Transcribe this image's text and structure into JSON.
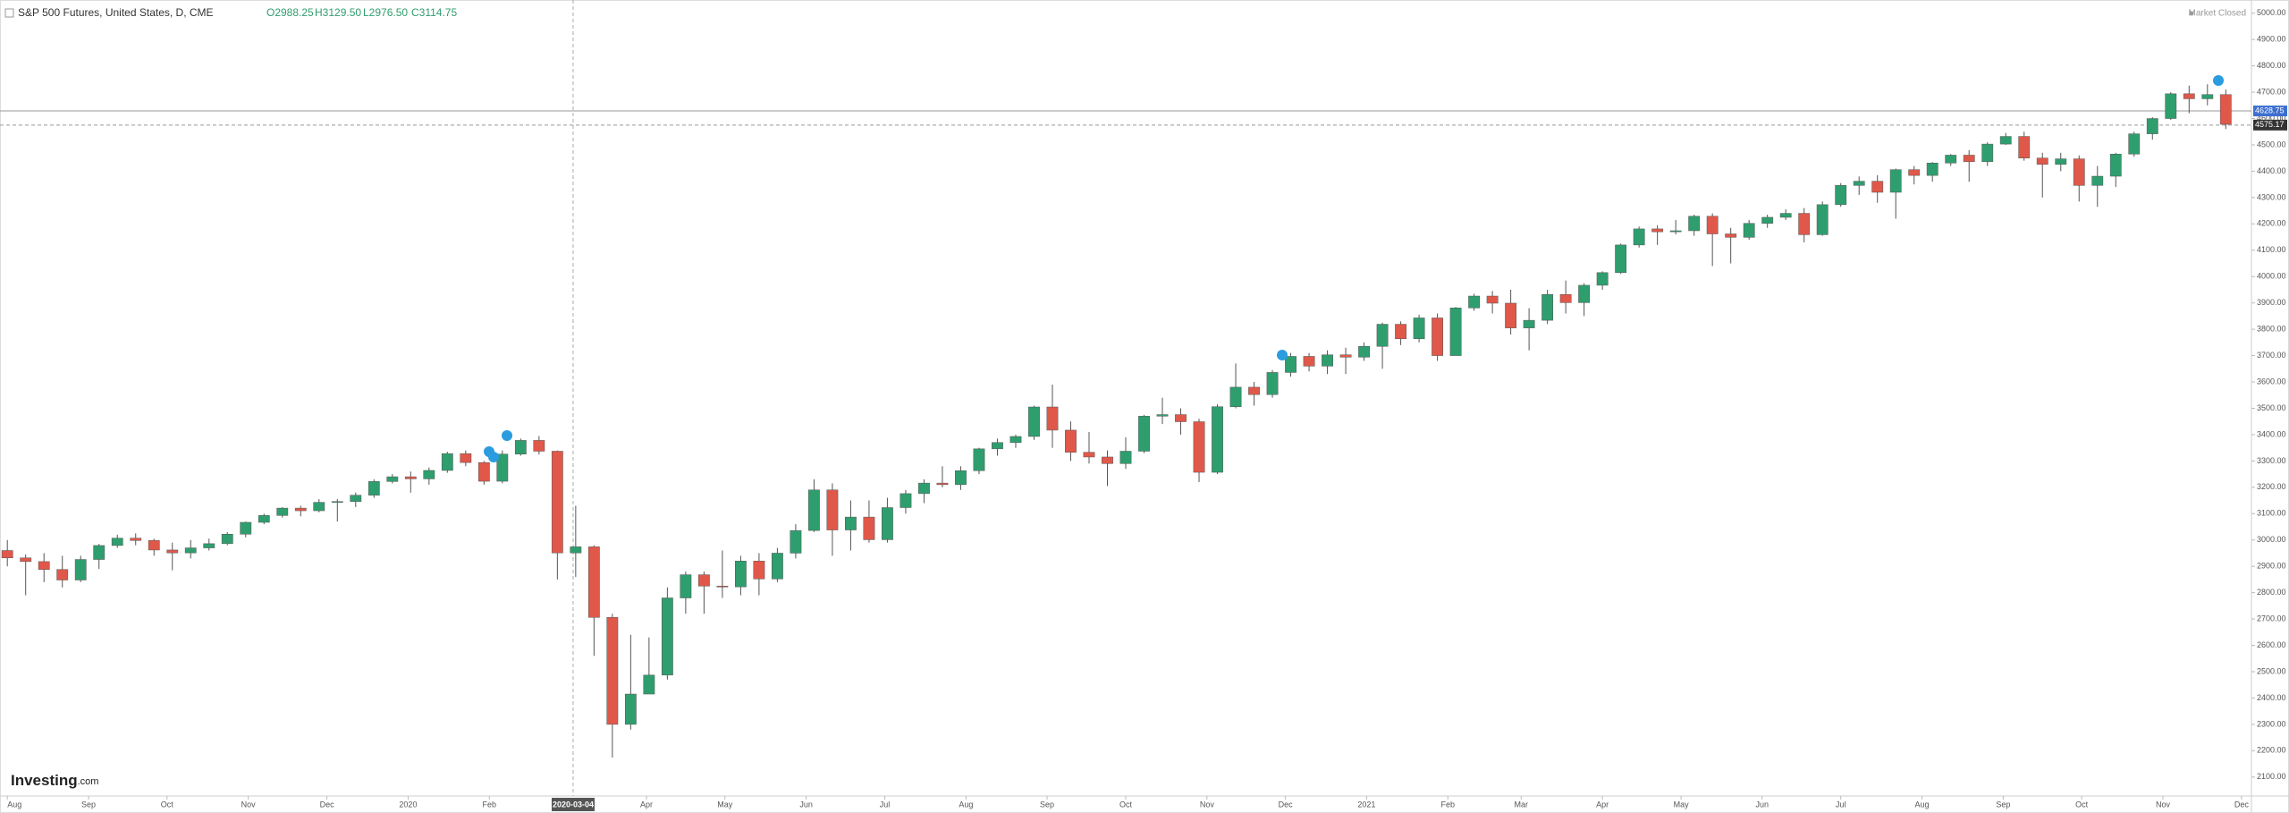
{
  "chart_data": {
    "type": "candlestick",
    "title": "S&P 500 Futures, United States, D, CME",
    "ohlc_labels": [
      "O2988.25",
      "H3129.50",
      "L2976.50",
      "C3114.75"
    ],
    "market_status": "Market Closed",
    "logo": "Investing",
    "logo_suffix": ".com",
    "up_color": "#2f9e6f",
    "down_color": "#e0584a",
    "x": [
      0,
      1,
      2,
      3,
      4,
      5,
      6,
      7,
      8,
      9,
      10,
      11,
      12,
      13,
      14,
      15,
      16,
      17,
      18,
      19,
      20,
      21,
      22,
      23,
      24,
      25,
      26,
      27,
      28,
      29,
      30,
      31,
      32,
      33,
      34,
      35,
      36,
      37,
      38,
      39,
      40,
      41,
      42,
      43,
      44,
      45,
      46,
      47,
      48,
      49,
      50,
      51,
      52,
      53,
      54,
      55,
      56,
      57,
      58,
      59,
      60,
      61,
      62,
      63,
      64,
      65,
      66,
      67,
      68,
      69,
      70,
      71,
      72,
      73,
      74,
      75,
      76,
      77,
      78,
      79,
      80,
      81,
      82,
      83,
      84,
      85,
      86,
      87,
      88,
      89,
      90,
      91,
      92,
      93,
      94,
      95,
      96,
      97,
      98,
      99,
      100,
      101,
      102,
      103,
      104,
      105,
      106,
      107,
      108,
      109,
      110,
      111,
      112,
      113,
      114,
      115,
      116,
      117,
      118,
      119,
      120,
      121
    ],
    "open": [
      2960,
      2932,
      2918,
      2888,
      2848,
      2926,
      2979,
      3007,
      2998,
      2962,
      2951,
      2970,
      2986,
      3022,
      3067,
      3093,
      3121,
      3111,
      3143,
      3146,
      3170,
      3222,
      3240,
      3232,
      3264,
      3328,
      3294,
      3223,
      3326,
      3378,
      3337,
      2951,
      2974,
      2706,
      2300,
      2415,
      2487,
      2780,
      2868,
      2825,
      2822,
      2920,
      2852,
      2950,
      3036,
      3190,
      3038,
      3087,
      3001,
      3123,
      3176,
      3216,
      3210,
      3263,
      3346,
      3370,
      3393,
      3505,
      3417,
      3333,
      3315,
      3290,
      3337,
      3470,
      3476,
      3449,
      3257,
      3506,
      3580,
      3552,
      3636,
      3697,
      3660,
      3703,
      3694,
      3735,
      3819,
      3764,
      3843,
      3700,
      3881,
      3926,
      3899,
      3805,
      3834,
      3932,
      3901,
      3967,
      4015,
      4120,
      4181,
      4170,
      4174,
      4229,
      4162,
      4149,
      4202,
      4225,
      4240,
      4159,
      4273,
      4346,
      4362,
      4320,
      4406,
      4384,
      4431,
      4461,
      4436,
      4503,
      4532,
      4450,
      4426,
      4447,
      4346,
      4381,
      4465,
      4542,
      4600,
      4694,
      4675,
      4691
    ],
    "high": [
      3000,
      2945,
      2950,
      2940,
      2940,
      2985,
      3020,
      3025,
      3005,
      2990,
      3000,
      3005,
      3030,
      3070,
      3100,
      3125,
      3130,
      3155,
      3155,
      3180,
      3230,
      3250,
      3260,
      3275,
      3335,
      3340,
      3300,
      3340,
      3385,
      3395,
      3340,
      3130,
      2980,
      2720,
      2640,
      2630,
      2820,
      2880,
      2880,
      2960,
      2940,
      2950,
      2970,
      3060,
      3230,
      3215,
      3150,
      3150,
      3160,
      3190,
      3230,
      3280,
      3280,
      3350,
      3385,
      3400,
      3510,
      3590,
      3450,
      3410,
      3340,
      3390,
      3475,
      3540,
      3500,
      3460,
      3515,
      3670,
      3600,
      3645,
      3710,
      3710,
      3720,
      3730,
      3750,
      3825,
      3830,
      3855,
      3860,
      3885,
      3935,
      3945,
      3950,
      3880,
      3950,
      3985,
      3975,
      4020,
      4125,
      4190,
      4195,
      4215,
      4235,
      4240,
      4185,
      4215,
      4235,
      4255,
      4260,
      4285,
      4355,
      4380,
      4385,
      4410,
      4420,
      4435,
      4465,
      4480,
      4510,
      4545,
      4550,
      4470,
      4470,
      4460,
      4420,
      4470,
      4550,
      4605,
      4700,
      4725,
      4730,
      4710
    ],
    "low": [
      2900,
      2790,
      2840,
      2820,
      2840,
      2890,
      2970,
      2980,
      2940,
      2885,
      2930,
      2960,
      2980,
      3010,
      3060,
      3085,
      3090,
      3105,
      3070,
      3125,
      3160,
      3215,
      3180,
      3210,
      3255,
      3280,
      3210,
      3215,
      3320,
      3325,
      2850,
      2860,
      2560,
      2174,
      2280,
      2440,
      2470,
      2720,
      2720,
      2780,
      2790,
      2790,
      2840,
      2930,
      3030,
      2940,
      2960,
      2990,
      2990,
      3100,
      3140,
      3200,
      3190,
      3250,
      3320,
      3350,
      3380,
      3350,
      3300,
      3290,
      3205,
      3270,
      3330,
      3440,
      3400,
      3220,
      3250,
      3500,
      3510,
      3540,
      3620,
      3640,
      3630,
      3630,
      3680,
      3650,
      3740,
      3750,
      3680,
      3700,
      3870,
      3860,
      3780,
      3720,
      3820,
      3860,
      3850,
      3950,
      4010,
      4110,
      4120,
      4160,
      4155,
      4040,
      4050,
      4140,
      4185,
      4215,
      4130,
      4155,
      4265,
      4310,
      4280,
      4220,
      4350,
      4360,
      4420,
      4360,
      4420,
      4500,
      4440,
      4300,
      4400,
      4285,
      4265,
      4340,
      4455,
      4520,
      4595,
      4620,
      4650,
      4560
    ],
    "close": [
      2932,
      2918,
      2888,
      2848,
      2926,
      2979,
      3007,
      2998,
      2962,
      2951,
      2970,
      2986,
      3022,
      3067,
      3093,
      3121,
      3111,
      3143,
      3146,
      3170,
      3222,
      3240,
      3232,
      3264,
      3328,
      3294,
      3223,
      3326,
      3378,
      3337,
      2951,
      2974,
      2706,
      2300,
      2415,
      2487,
      2780,
      2868,
      2825,
      2822,
      2920,
      2852,
      2950,
      3036,
      3190,
      3038,
      3087,
      3001,
      3123,
      3176,
      3216,
      3210,
      3263,
      3346,
      3370,
      3393,
      3505,
      3417,
      3333,
      3315,
      3290,
      3337,
      3470,
      3476,
      3449,
      3257,
      3506,
      3580,
      3552,
      3636,
      3697,
      3660,
      3703,
      3694,
      3735,
      3819,
      3764,
      3843,
      3700,
      3881,
      3926,
      3899,
      3805,
      3834,
      3932,
      3901,
      3967,
      4015,
      4120,
      4181,
      4170,
      4174,
      4229,
      4162,
      4149,
      4202,
      4225,
      4240,
      4159,
      4273,
      4346,
      4362,
      4320,
      4406,
      4384,
      4431,
      4461,
      4436,
      4503,
      4532,
      4450,
      4426,
      4447,
      4346,
      4381,
      4465,
      4542,
      4600,
      4694,
      4675,
      4691,
      4578
    ],
    "xlim": [
      -0.4,
      122.4
    ],
    "ylim": [
      2028,
      5050
    ],
    "xticks": [
      {
        "value": 0,
        "label": "Aug"
      },
      {
        "value": 4.43,
        "label": "Sep"
      },
      {
        "value": 8.71,
        "label": "Oct"
      },
      {
        "value": 13.14,
        "label": "Nov"
      },
      {
        "value": 17.43,
        "label": "Dec"
      },
      {
        "value": 21.86,
        "label": "2020"
      },
      {
        "value": 26.29,
        "label": "Feb"
      },
      {
        "value": 34.86,
        "label": "Apr"
      },
      {
        "value": 39.14,
        "label": "May"
      },
      {
        "value": 43.57,
        "label": "Jun"
      },
      {
        "value": 47.86,
        "label": "Jul"
      },
      {
        "value": 52.29,
        "label": "Aug"
      },
      {
        "value": 56.71,
        "label": "Sep"
      },
      {
        "value": 61,
        "label": "Oct"
      },
      {
        "value": 65.43,
        "label": "Nov"
      },
      {
        "value": 69.71,
        "label": "Dec"
      },
      {
        "value": 74.14,
        "label": "2021"
      },
      {
        "value": 78.57,
        "label": "Feb"
      },
      {
        "value": 82.57,
        "label": "Mar"
      },
      {
        "value": 87,
        "label": "Apr"
      },
      {
        "value": 91.29,
        "label": "May"
      },
      {
        "value": 95.71,
        "label": "Jun"
      },
      {
        "value": 100,
        "label": "Jul"
      },
      {
        "value": 104.43,
        "label": "Aug"
      },
      {
        "value": 108.86,
        "label": "Sep"
      },
      {
        "value": 113.14,
        "label": "Oct"
      },
      {
        "value": 117.57,
        "label": "Nov"
      },
      {
        "value": 121.86,
        "label": "Dec"
      }
    ],
    "yticks": [
      {
        "value": 2100,
        "label": "2100.00"
      },
      {
        "value": 2200,
        "label": "2200.00"
      },
      {
        "value": 2300,
        "label": "2300.00"
      },
      {
        "value": 2400,
        "label": "2400.00"
      },
      {
        "value": 2500,
        "label": "2500.00"
      },
      {
        "value": 2600,
        "label": "2600.00"
      },
      {
        "value": 2700,
        "label": "2700.00"
      },
      {
        "value": 2800,
        "label": "2800.00"
      },
      {
        "value": 2900,
        "label": "2900.00"
      },
      {
        "value": 3000,
        "label": "3000.00"
      },
      {
        "value": 3100,
        "label": "3100.00"
      },
      {
        "value": 3200,
        "label": "3200.00"
      },
      {
        "value": 3300,
        "label": "3300.00"
      },
      {
        "value": 3400,
        "label": "3400.00"
      },
      {
        "value": 3500,
        "label": "3500.00"
      },
      {
        "value": 3600,
        "label": "3600.00"
      },
      {
        "value": 3700,
        "label": "3700.00"
      },
      {
        "value": 3800,
        "label": "3800.00"
      },
      {
        "value": 3900,
        "label": "3900.00"
      },
      {
        "value": 4000,
        "label": "4000.00"
      },
      {
        "value": 4100,
        "label": "4100.00"
      },
      {
        "value": 4200,
        "label": "4200.00"
      },
      {
        "value": 4300,
        "label": "4300.00"
      },
      {
        "value": 4400,
        "label": "4400.00"
      },
      {
        "value": 4500,
        "label": "4500.00"
      },
      {
        "value": 4600,
        "label": "4600.00"
      },
      {
        "value": 4700,
        "label": "4700.00"
      },
      {
        "value": 4800,
        "label": "4800.00"
      },
      {
        "value": 4900,
        "label": "4900.00"
      },
      {
        "value": 5000,
        "label": "5000.00"
      }
    ],
    "crosshair": {
      "x": 30.86,
      "label": "2020-03-04"
    },
    "price_line": 4628.75,
    "current_price": 4575.17
  }
}
